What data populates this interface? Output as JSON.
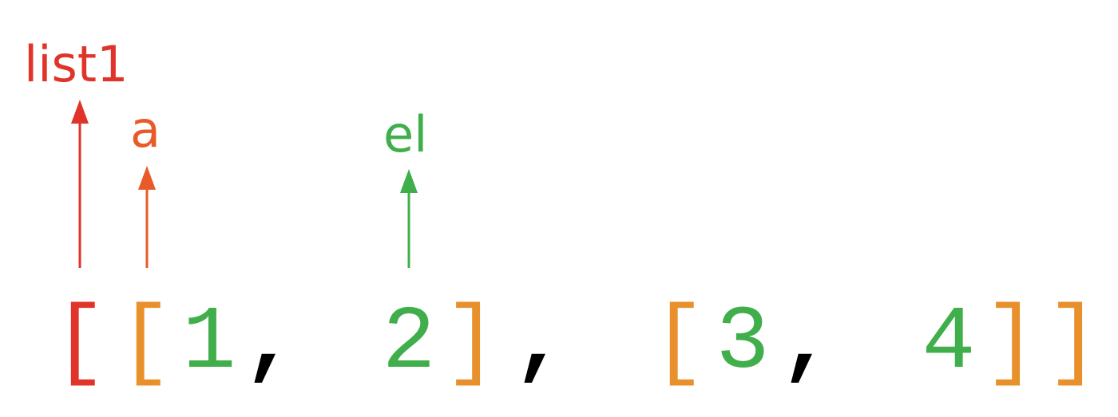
{
  "colors": {
    "red": "#e0342a",
    "orange": "#e8902c",
    "orange_arrow": "#e85a28",
    "green": "#3fae4b",
    "black": "#000000"
  },
  "labels": {
    "list1": "list1",
    "a": "a",
    "el": "el"
  },
  "code": {
    "outer_open": "[",
    "inner1_open": "[",
    "num1": "1",
    "comma1": ",",
    "num2": "2",
    "inner1_close": "]",
    "comma2": ",",
    "inner2_open": "[",
    "num3": "3",
    "comma3": ",",
    "num4": "4",
    "inner2_close": "]",
    "outer_close": "]"
  }
}
